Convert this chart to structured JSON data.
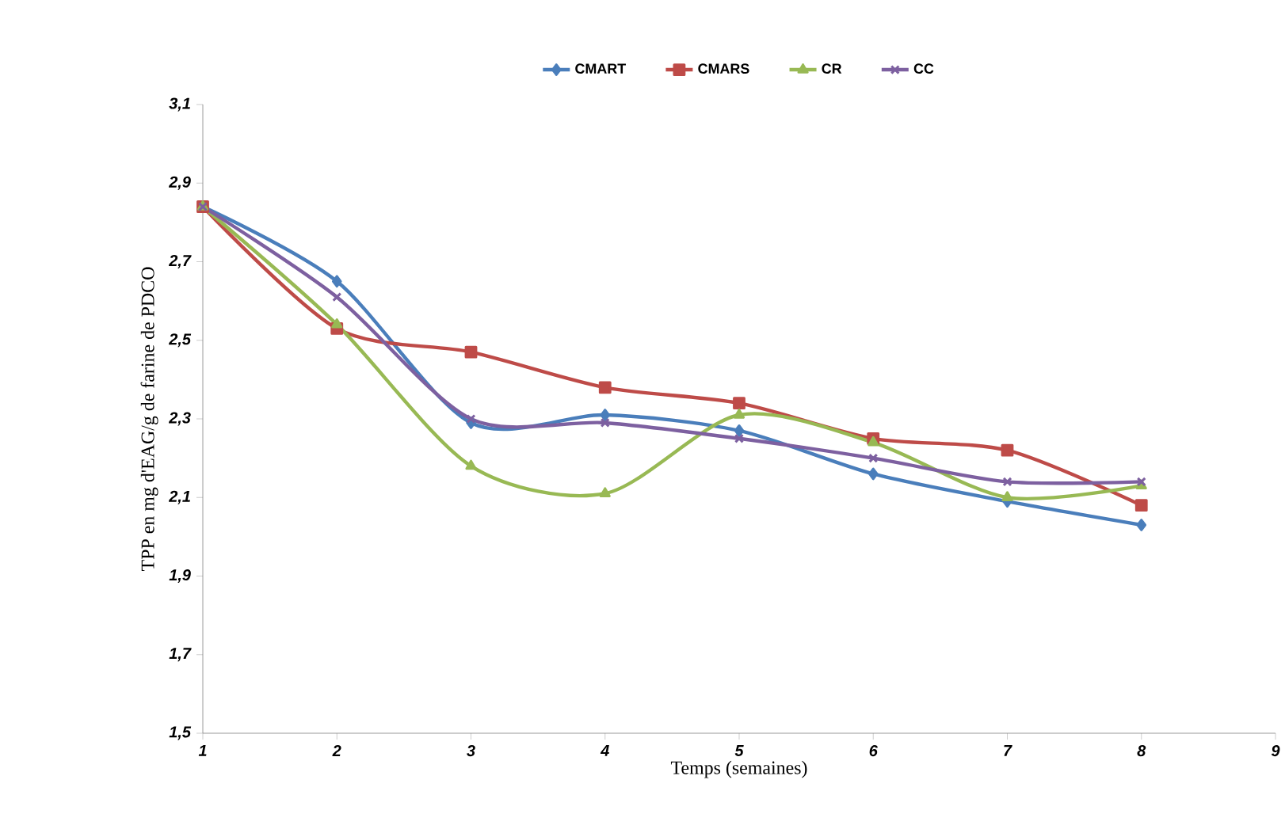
{
  "chart_data": {
    "type": "line",
    "xlabel": "Temps (semaines)",
    "ylabel": "TPP en mg d'EAG/g de farine de PDCO",
    "x": [
      1,
      2,
      3,
      4,
      5,
      6,
      7,
      8
    ],
    "series": [
      {
        "name": "CMART",
        "color": "#4a7ebb",
        "marker": "diamond",
        "values": [
          2.84,
          2.65,
          2.29,
          2.31,
          2.27,
          2.16,
          2.09,
          2.03
        ]
      },
      {
        "name": "CMARS",
        "color": "#be4b48",
        "marker": "square",
        "values": [
          2.84,
          2.53,
          2.47,
          2.38,
          2.34,
          2.25,
          2.22,
          2.08
        ]
      },
      {
        "name": "CR",
        "color": "#98b954",
        "marker": "triangle",
        "values": [
          2.84,
          2.54,
          2.18,
          2.11,
          2.31,
          2.24,
          2.1,
          2.13
        ]
      },
      {
        "name": "CC",
        "color": "#7d60a0",
        "marker": "cross",
        "values": [
          2.84,
          2.61,
          2.3,
          2.29,
          2.25,
          2.2,
          2.14,
          2.14
        ]
      }
    ],
    "xlim": [
      1,
      9
    ],
    "xticks": [
      1,
      2,
      3,
      4,
      5,
      6,
      7,
      8,
      9
    ],
    "ylim": [
      1.5,
      3.1
    ],
    "yticks": [
      {
        "value": 1.5,
        "label": "1,5"
      },
      {
        "value": 1.7,
        "label": "1,7"
      },
      {
        "value": 1.9,
        "label": "1,9"
      },
      {
        "value": 2.1,
        "label": "2,1"
      },
      {
        "value": 2.3,
        "label": "2,3"
      },
      {
        "value": 2.5,
        "label": "2,5"
      },
      {
        "value": 2.7,
        "label": "2,7"
      },
      {
        "value": 2.9,
        "label": "2,9"
      },
      {
        "value": 3.1,
        "label": "3,1"
      }
    ],
    "grid": false,
    "legend": "top",
    "line_style": "solid"
  }
}
